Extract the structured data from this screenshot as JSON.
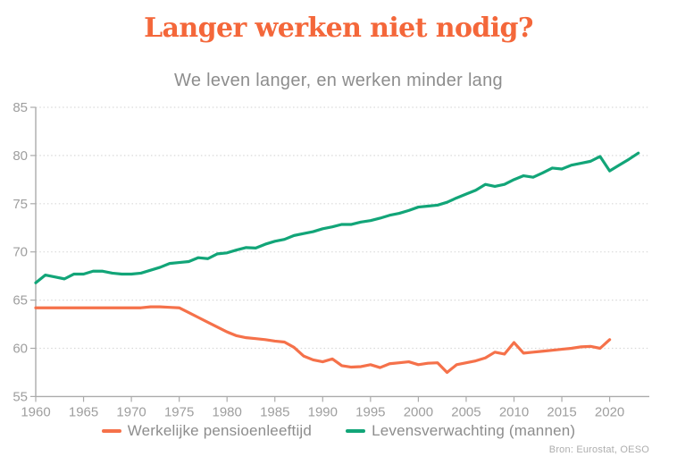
{
  "header": {
    "title": "Langer werken niet nodig?",
    "subtitle": "We leven langer, en werken minder lang"
  },
  "source": "Bron: Eurostat, OESO",
  "colors": {
    "title": "#f4673a",
    "subtitle_text": "#8d8d8d",
    "axis": "#ababab",
    "tick_label": "#9e9e9e",
    "gridline": "#d9d9d9",
    "legend_text": "#8d8d8d",
    "source_text": "#aeaeae",
    "background": "#ffffff",
    "pension_line": "#f5714a",
    "life_expectancy_line": "#12a578"
  },
  "chart_data": {
    "type": "line",
    "title": "Langer werken niet nodig?",
    "subtitle": "We leven langer, en werken minder lang",
    "xlabel": "",
    "ylabel": "",
    "xlim": [
      1960,
      2024
    ],
    "ylim": [
      55,
      85
    ],
    "x_ticks": [
      1960,
      1965,
      1970,
      1975,
      1980,
      1985,
      1990,
      1995,
      2000,
      2005,
      2010,
      2015,
      2020
    ],
    "y_ticks": [
      55,
      60,
      65,
      70,
      75,
      80,
      85
    ],
    "grid": "horizontal-dotted",
    "legend_position": "bottom",
    "series": [
      {
        "name": "Werkelijke pensioenleeftijd",
        "color": "#f5714a",
        "start_year": 1960,
        "values": [
          64.2,
          64.2,
          64.2,
          64.2,
          64.2,
          64.2,
          64.2,
          64.2,
          64.2,
          64.2,
          64.2,
          64.2,
          64.3,
          64.3,
          64.25,
          64.2,
          63.7,
          63.2,
          62.7,
          62.2,
          61.7,
          61.3,
          61.1,
          61.0,
          60.9,
          60.75,
          60.65,
          60.1,
          59.2,
          58.8,
          58.6,
          58.9,
          58.2,
          58.05,
          58.1,
          58.3,
          58.0,
          58.4,
          58.5,
          58.6,
          58.3,
          58.45,
          58.5,
          57.5,
          58.3,
          58.5,
          58.7,
          59.0,
          59.6,
          59.4,
          60.6,
          59.5,
          59.6,
          59.7,
          59.8,
          59.9,
          60.0,
          60.15,
          60.2,
          60.0,
          60.9
        ]
      },
      {
        "name": "Levensverwachting (mannen)",
        "color": "#12a578",
        "start_year": 1960,
        "values": [
          66.8,
          67.6,
          67.4,
          67.2,
          67.7,
          67.7,
          68.0,
          68.0,
          67.8,
          67.7,
          67.7,
          67.8,
          68.1,
          68.4,
          68.8,
          68.9,
          69.0,
          69.4,
          69.3,
          69.8,
          69.9,
          70.2,
          70.45,
          70.4,
          70.8,
          71.1,
          71.3,
          71.7,
          71.9,
          72.1,
          72.4,
          72.6,
          72.85,
          72.85,
          73.1,
          73.25,
          73.5,
          73.8,
          74.0,
          74.3,
          74.65,
          74.75,
          74.85,
          75.15,
          75.6,
          76.0,
          76.4,
          77.0,
          76.8,
          77.0,
          77.5,
          77.9,
          77.75,
          78.2,
          78.7,
          78.6,
          79.0,
          79.2,
          79.4,
          79.9,
          78.4,
          79.0,
          79.6,
          80.25
        ]
      }
    ]
  }
}
